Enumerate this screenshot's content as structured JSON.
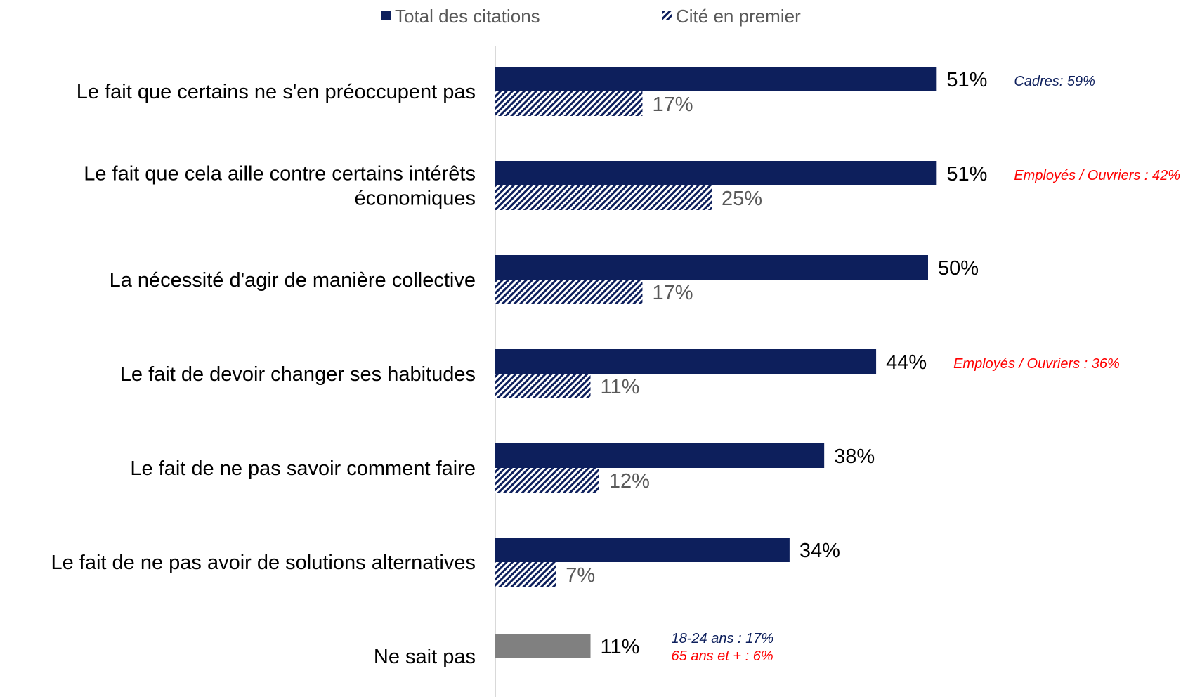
{
  "colors": {
    "total": "#0d1f5c",
    "first": "#0d1f5c",
    "dontknow": "#808080",
    "label_total": "#000000",
    "label_first": "#595959",
    "ann_blue": "#0d1f5c",
    "ann_red": "#ff0000",
    "axis": "#d9d9d9"
  },
  "chart_data": {
    "type": "bar",
    "orientation": "horizontal",
    "title": "",
    "xlabel": "",
    "ylabel": "",
    "xlim": [
      0,
      60
    ],
    "grid": false,
    "legend_position": "top",
    "series": [
      {
        "name": "Total des citations",
        "values": [
          51,
          51,
          50,
          44,
          38,
          34,
          null
        ],
        "labels": [
          "51%",
          "51%",
          "50%",
          "44%",
          "38%",
          "34%",
          ""
        ]
      },
      {
        "name": "Cité en premier",
        "values": [
          17,
          25,
          17,
          11,
          12,
          7,
          null
        ],
        "labels": [
          "17%",
          "25%",
          "17%",
          "11%",
          "12%",
          "7%",
          ""
        ]
      }
    ],
    "categories": [
      [
        "Le fait que certains ne s'en préoccupent pas"
      ],
      [
        "Le fait que cela aille contre certains intérêts",
        "économiques"
      ],
      [
        "La nécessité d'agir de manière collective"
      ],
      [
        "Le fait de devoir changer ses habitudes"
      ],
      [
        "Le fait de ne pas savoir comment faire"
      ],
      [
        "Le fait de ne pas avoir de solutions alternatives"
      ],
      [
        "Ne sait pas"
      ]
    ],
    "dontknow": {
      "value": 11,
      "label": "11%"
    },
    "annotations": [
      {
        "row": 0,
        "lines": [
          {
            "text": "Cadres: 59%",
            "color": "blue"
          }
        ]
      },
      {
        "row": 1,
        "lines": [
          {
            "text": "Employés / Ouvriers : 42%",
            "color": "red"
          }
        ]
      },
      {
        "row": 3,
        "lines": [
          {
            "text": "Employés / Ouvriers : 36%",
            "color": "red"
          }
        ]
      },
      {
        "row": 6,
        "lines": [
          {
            "text": "18-24 ans : 17%",
            "color": "blue"
          },
          {
            "text": "65 ans et + : 6%",
            "color": "red"
          }
        ]
      }
    ]
  }
}
